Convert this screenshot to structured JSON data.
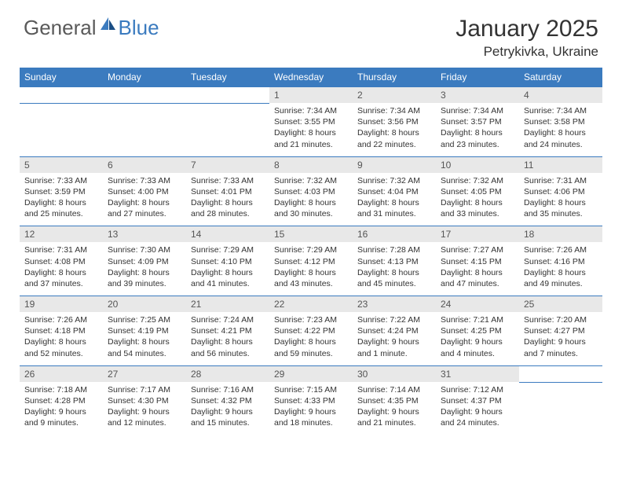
{
  "logo": {
    "general": "General",
    "blue": "Blue"
  },
  "title": "January 2025",
  "location": "Petrykivka, Ukraine",
  "colors": {
    "header_bg": "#3b7bbf",
    "daynum_bg": "#e8e8e8",
    "text": "#333333",
    "logo_gray": "#5a5a5a",
    "logo_blue": "#3b7bbf"
  },
  "weekdays": [
    "Sunday",
    "Monday",
    "Tuesday",
    "Wednesday",
    "Thursday",
    "Friday",
    "Saturday"
  ],
  "weeks": [
    [
      null,
      null,
      null,
      {
        "n": "1",
        "sr": "7:34 AM",
        "ss": "3:55 PM",
        "dl": "8 hours and 21 minutes."
      },
      {
        "n": "2",
        "sr": "7:34 AM",
        "ss": "3:56 PM",
        "dl": "8 hours and 22 minutes."
      },
      {
        "n": "3",
        "sr": "7:34 AM",
        "ss": "3:57 PM",
        "dl": "8 hours and 23 minutes."
      },
      {
        "n": "4",
        "sr": "7:34 AM",
        "ss": "3:58 PM",
        "dl": "8 hours and 24 minutes."
      }
    ],
    [
      {
        "n": "5",
        "sr": "7:33 AM",
        "ss": "3:59 PM",
        "dl": "8 hours and 25 minutes."
      },
      {
        "n": "6",
        "sr": "7:33 AM",
        "ss": "4:00 PM",
        "dl": "8 hours and 27 minutes."
      },
      {
        "n": "7",
        "sr": "7:33 AM",
        "ss": "4:01 PM",
        "dl": "8 hours and 28 minutes."
      },
      {
        "n": "8",
        "sr": "7:32 AM",
        "ss": "4:03 PM",
        "dl": "8 hours and 30 minutes."
      },
      {
        "n": "9",
        "sr": "7:32 AM",
        "ss": "4:04 PM",
        "dl": "8 hours and 31 minutes."
      },
      {
        "n": "10",
        "sr": "7:32 AM",
        "ss": "4:05 PM",
        "dl": "8 hours and 33 minutes."
      },
      {
        "n": "11",
        "sr": "7:31 AM",
        "ss": "4:06 PM",
        "dl": "8 hours and 35 minutes."
      }
    ],
    [
      {
        "n": "12",
        "sr": "7:31 AM",
        "ss": "4:08 PM",
        "dl": "8 hours and 37 minutes."
      },
      {
        "n": "13",
        "sr": "7:30 AM",
        "ss": "4:09 PM",
        "dl": "8 hours and 39 minutes."
      },
      {
        "n": "14",
        "sr": "7:29 AM",
        "ss": "4:10 PM",
        "dl": "8 hours and 41 minutes."
      },
      {
        "n": "15",
        "sr": "7:29 AM",
        "ss": "4:12 PM",
        "dl": "8 hours and 43 minutes."
      },
      {
        "n": "16",
        "sr": "7:28 AM",
        "ss": "4:13 PM",
        "dl": "8 hours and 45 minutes."
      },
      {
        "n": "17",
        "sr": "7:27 AM",
        "ss": "4:15 PM",
        "dl": "8 hours and 47 minutes."
      },
      {
        "n": "18",
        "sr": "7:26 AM",
        "ss": "4:16 PM",
        "dl": "8 hours and 49 minutes."
      }
    ],
    [
      {
        "n": "19",
        "sr": "7:26 AM",
        "ss": "4:18 PM",
        "dl": "8 hours and 52 minutes."
      },
      {
        "n": "20",
        "sr": "7:25 AM",
        "ss": "4:19 PM",
        "dl": "8 hours and 54 minutes."
      },
      {
        "n": "21",
        "sr": "7:24 AM",
        "ss": "4:21 PM",
        "dl": "8 hours and 56 minutes."
      },
      {
        "n": "22",
        "sr": "7:23 AM",
        "ss": "4:22 PM",
        "dl": "8 hours and 59 minutes."
      },
      {
        "n": "23",
        "sr": "7:22 AM",
        "ss": "4:24 PM",
        "dl": "9 hours and 1 minute."
      },
      {
        "n": "24",
        "sr": "7:21 AM",
        "ss": "4:25 PM",
        "dl": "9 hours and 4 minutes."
      },
      {
        "n": "25",
        "sr": "7:20 AM",
        "ss": "4:27 PM",
        "dl": "9 hours and 7 minutes."
      }
    ],
    [
      {
        "n": "26",
        "sr": "7:18 AM",
        "ss": "4:28 PM",
        "dl": "9 hours and 9 minutes."
      },
      {
        "n": "27",
        "sr": "7:17 AM",
        "ss": "4:30 PM",
        "dl": "9 hours and 12 minutes."
      },
      {
        "n": "28",
        "sr": "7:16 AM",
        "ss": "4:32 PM",
        "dl": "9 hours and 15 minutes."
      },
      {
        "n": "29",
        "sr": "7:15 AM",
        "ss": "4:33 PM",
        "dl": "9 hours and 18 minutes."
      },
      {
        "n": "30",
        "sr": "7:14 AM",
        "ss": "4:35 PM",
        "dl": "9 hours and 21 minutes."
      },
      {
        "n": "31",
        "sr": "7:12 AM",
        "ss": "4:37 PM",
        "dl": "9 hours and 24 minutes."
      },
      null
    ]
  ]
}
